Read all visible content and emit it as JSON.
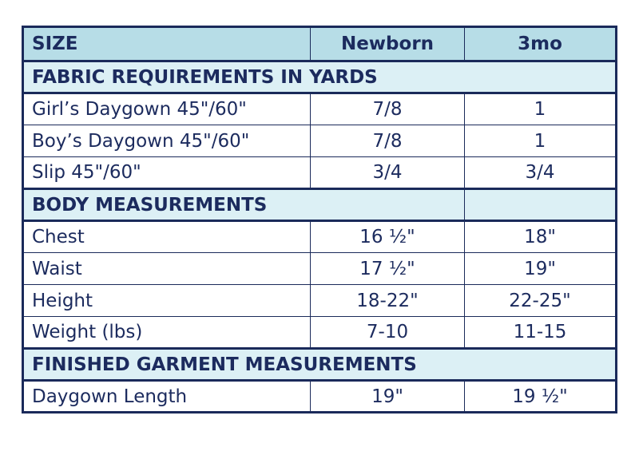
{
  "table": {
    "header": [
      "SIZE",
      "Newborn",
      "3mo"
    ],
    "sections": [
      {
        "title": "FABRIC REQUIREMENTS IN YARDS",
        "span": 3,
        "rows": [
          [
            "Girl’s Daygown 45\"/60\"",
            "7/8",
            "1"
          ],
          [
            "Boy’s Daygown 45\"/60\"",
            "7/8",
            "1"
          ],
          [
            "Slip 45\"/60\"",
            "3/4",
            "3/4"
          ]
        ]
      },
      {
        "title": "BODY MEASUREMENTS",
        "span": 2,
        "rows": [
          [
            "Chest",
            "16 ½\"",
            "18\""
          ],
          [
            "Waist",
            "17 ½\"",
            "19\""
          ],
          [
            "Height",
            "18-22\"",
            "22-25\""
          ],
          [
            "Weight (lbs)",
            "7-10",
            "11-15"
          ]
        ]
      },
      {
        "title": "FINISHED GARMENT MEASUREMENTS",
        "span": 3,
        "rows": [
          [
            "Daygown Length",
            "19\"",
            "19 ½\""
          ]
        ]
      }
    ]
  }
}
